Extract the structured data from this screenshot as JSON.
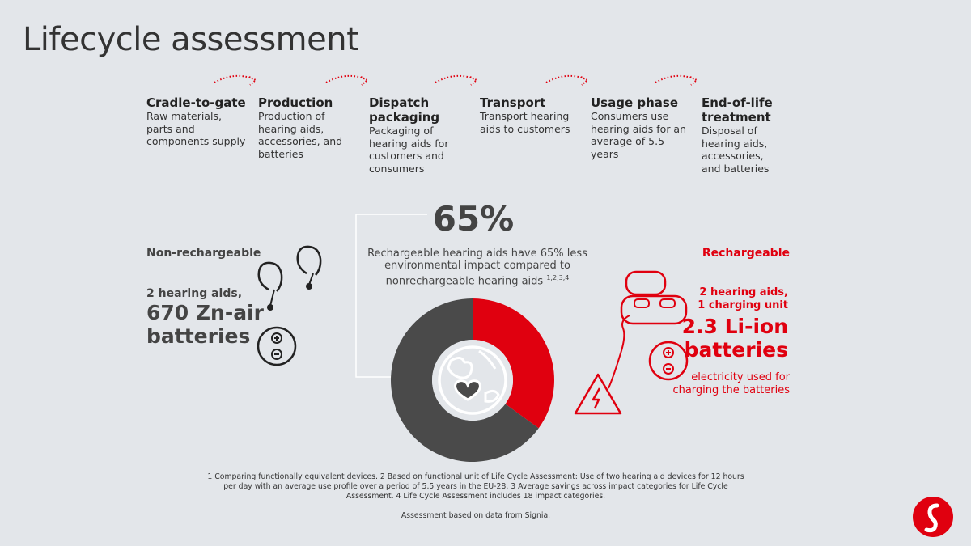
{
  "title": "Lifecycle assessment",
  "steps": [
    {
      "title": "Cradle-to-gate",
      "desc": "Raw materials, parts and components supply"
    },
    {
      "title": "Production",
      "desc": "Production of hearing aids, accessories, and batteries"
    },
    {
      "title": "Dispatch packaging",
      "desc": "Packaging of hearing aids for customers and consumers"
    },
    {
      "title": "Transport",
      "desc": "Transport hearing aids to customers"
    },
    {
      "title": "Usage phase",
      "desc": "Consumers use hearing aids for an average of 5.5 years"
    },
    {
      "title": "End-of-life treatment",
      "desc": "Disposal of hearing aids, accessories, and batteries"
    }
  ],
  "comparison": {
    "headline": "65%",
    "description": "Rechargeable hearing aids have 65% less environmental impact compared to nonrechargeable hearing aids",
    "footnote_refs": "1,2,3,4"
  },
  "non_rechargeable": {
    "label": "Non-rechargeable",
    "count": "2 hearing aids,",
    "batteries": "670 Zn-air batteries"
  },
  "rechargeable": {
    "label": "Rechargeable",
    "count_line1": "2 hearing aids,",
    "count_line2": "1 charging unit",
    "batteries": "2.3 Li-ion batteries",
    "electricity": "electricity used for charging the batteries"
  },
  "chart_data": {
    "type": "pie",
    "slices": [
      {
        "label": "Rechargeable",
        "value": 35,
        "color": "#e0000f"
      },
      {
        "label": "Non-rechargeable",
        "value": 65,
        "color": "#4a4a4a"
      }
    ]
  },
  "footnotes": "1 Comparing functionally equivalent devices. 2 Based on functional unit of Life Cycle Assessment: Use of two hearing aid devices for 12 hours per day with an average use profile over a period of 5.5 years in the EU-28. 3 Average savings across impact categories for Life Cycle Assessment. 4 Life Cycle Assessment includes 18 impact categories.",
  "source": "Assessment based on data from Signia.",
  "colors": {
    "accent": "#e0000f",
    "dark": "#4a4a4a",
    "background": "#e3e6ea"
  },
  "icons": [
    "dotted-arrow-icon",
    "hearing-aid-icon",
    "battery-icon",
    "globe-heart-icon",
    "charging-case-icon",
    "high-voltage-icon",
    "signia-logo"
  ]
}
